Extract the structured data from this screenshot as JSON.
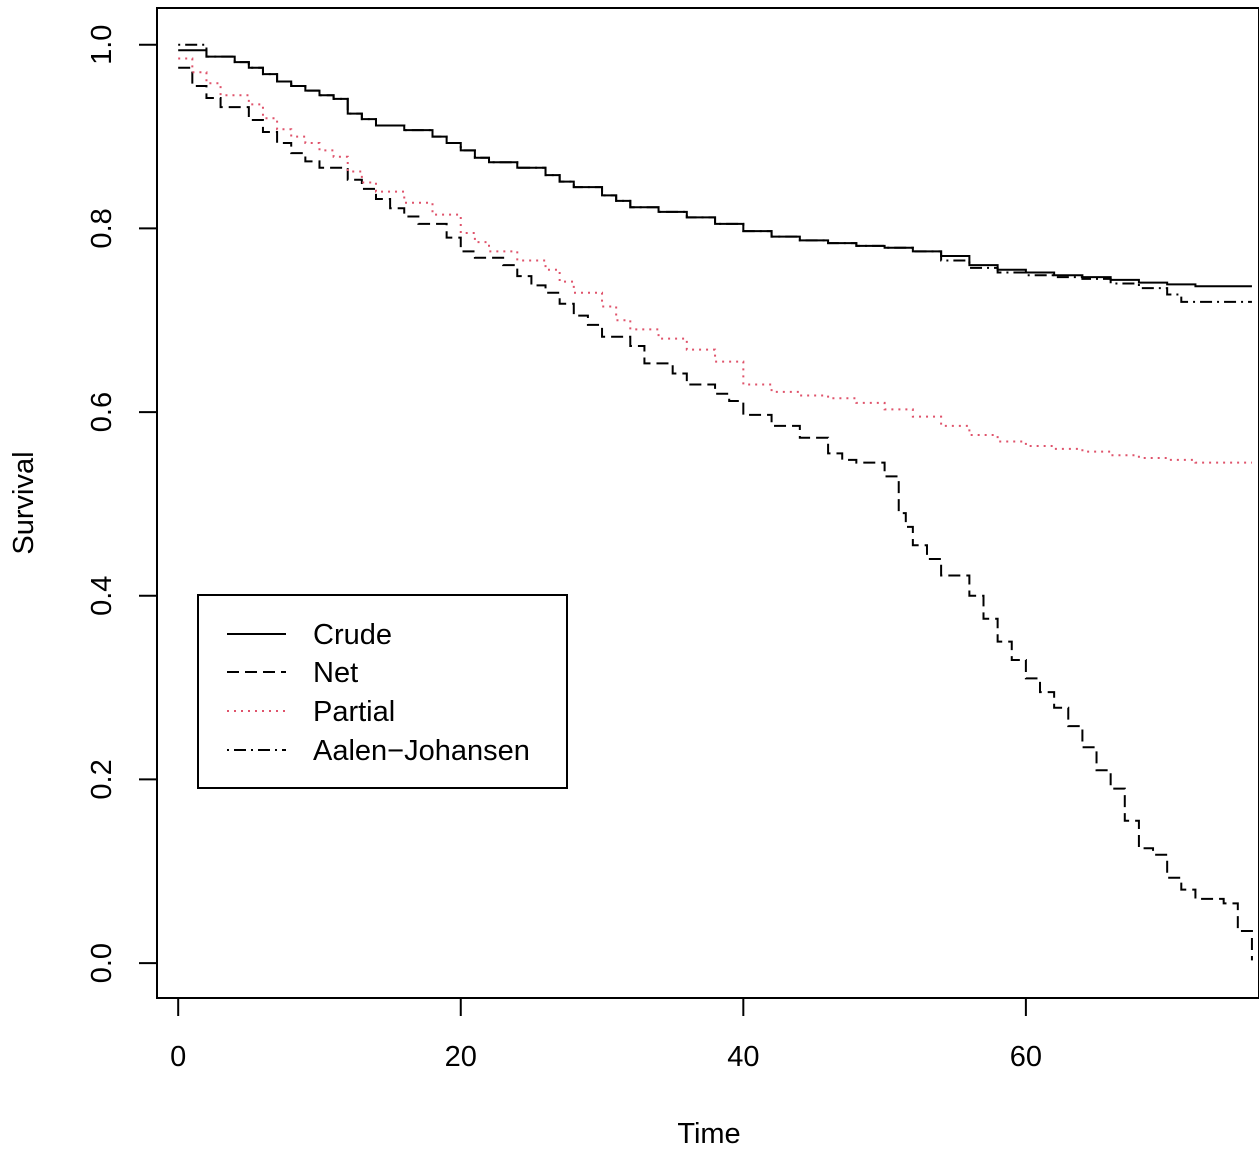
{
  "chart_data": {
    "type": "line",
    "xlabel": "Time",
    "ylabel": "Survival",
    "xlim": [
      -1.5,
      76.5
    ],
    "ylim": [
      -0.038,
      1.04
    ],
    "xticks": [
      0,
      20,
      40,
      60
    ],
    "yticks": [
      0.0,
      0.2,
      0.4,
      0.6,
      0.8,
      1.0
    ],
    "ytick_labels": [
      "0.0",
      "0.2",
      "0.4",
      "0.6",
      "0.8",
      "1.0"
    ],
    "grid": false,
    "legend_position": "center-left",
    "series": [
      {
        "name": "Crude",
        "color": "#000000",
        "dash": "solid",
        "step": true,
        "x": [
          0,
          2,
          4,
          5,
          6,
          7,
          8,
          9,
          10,
          11,
          12,
          13,
          14,
          16,
          18,
          19,
          20,
          21,
          22,
          24,
          26,
          27,
          28,
          30,
          31,
          32,
          34,
          36,
          38,
          40,
          42,
          44,
          46,
          48,
          50,
          52,
          54,
          56,
          58,
          60,
          62,
          64,
          66,
          68,
          70,
          72,
          76
        ],
        "y": [
          0.994,
          0.987,
          0.981,
          0.975,
          0.968,
          0.96,
          0.955,
          0.95,
          0.945,
          0.941,
          0.925,
          0.919,
          0.912,
          0.907,
          0.9,
          0.893,
          0.885,
          0.877,
          0.872,
          0.866,
          0.858,
          0.851,
          0.845,
          0.836,
          0.83,
          0.823,
          0.818,
          0.812,
          0.805,
          0.797,
          0.791,
          0.787,
          0.784,
          0.781,
          0.779,
          0.775,
          0.77,
          0.76,
          0.755,
          0.752,
          0.749,
          0.747,
          0.744,
          0.741,
          0.739,
          0.737,
          0.737
        ]
      },
      {
        "name": "Net",
        "color": "#000000",
        "dash": "dashed",
        "step": true,
        "x": [
          0,
          1,
          2,
          3,
          5,
          6,
          7,
          8,
          9,
          10,
          12,
          13,
          14,
          15,
          16,
          17,
          19,
          20,
          21,
          23,
          24,
          25,
          26,
          27,
          28,
          29,
          30,
          32,
          33,
          35,
          36,
          38,
          39,
          40,
          42,
          44,
          46,
          47,
          48,
          50,
          51,
          51.5,
          52,
          53,
          54,
          56,
          57,
          58,
          59,
          60,
          61,
          62,
          63,
          64,
          65,
          66,
          67,
          68,
          69,
          70,
          71,
          72,
          74,
          75,
          76
        ],
        "y": [
          0.975,
          0.955,
          0.942,
          0.932,
          0.918,
          0.905,
          0.893,
          0.882,
          0.873,
          0.866,
          0.853,
          0.843,
          0.832,
          0.822,
          0.813,
          0.805,
          0.79,
          0.775,
          0.768,
          0.76,
          0.748,
          0.738,
          0.73,
          0.718,
          0.705,
          0.695,
          0.682,
          0.672,
          0.653,
          0.642,
          0.63,
          0.62,
          0.612,
          0.597,
          0.585,
          0.572,
          0.555,
          0.548,
          0.545,
          0.53,
          0.49,
          0.475,
          0.455,
          0.44,
          0.422,
          0.4,
          0.375,
          0.35,
          0.33,
          0.31,
          0.295,
          0.278,
          0.258,
          0.235,
          0.21,
          0.19,
          0.155,
          0.125,
          0.118,
          0.093,
          0.08,
          0.07,
          0.065,
          0.035,
          0.003
        ]
      },
      {
        "name": "Partial",
        "color": "#df536b",
        "dash": "dotted",
        "step": true,
        "x": [
          0,
          1,
          2,
          3,
          5,
          6,
          7,
          8,
          9,
          10,
          11,
          12,
          13,
          14,
          16,
          18,
          20,
          21,
          22,
          24,
          26,
          27,
          28,
          30,
          31,
          32,
          34,
          36,
          38,
          40,
          42,
          44,
          46,
          48,
          50,
          52,
          54,
          56,
          58,
          60,
          62,
          64,
          66,
          68,
          70,
          72,
          76
        ],
        "y": [
          0.985,
          0.97,
          0.958,
          0.945,
          0.935,
          0.92,
          0.908,
          0.9,
          0.893,
          0.885,
          0.878,
          0.862,
          0.85,
          0.84,
          0.828,
          0.815,
          0.795,
          0.785,
          0.775,
          0.765,
          0.755,
          0.742,
          0.73,
          0.715,
          0.7,
          0.69,
          0.68,
          0.668,
          0.655,
          0.63,
          0.622,
          0.618,
          0.615,
          0.61,
          0.603,
          0.595,
          0.585,
          0.575,
          0.568,
          0.563,
          0.56,
          0.557,
          0.553,
          0.55,
          0.548,
          0.545,
          0.545
        ]
      },
      {
        "name": "Aalen−Johansen",
        "color": "#000000",
        "dash": "dotdash",
        "step": true,
        "x": [
          0,
          2,
          4,
          5,
          6,
          7,
          8,
          9,
          10,
          11,
          12,
          13,
          14,
          16,
          18,
          19,
          20,
          21,
          22,
          24,
          26,
          27,
          28,
          30,
          31,
          32,
          34,
          36,
          38,
          40,
          42,
          44,
          46,
          48,
          50,
          52,
          54,
          56,
          58,
          60,
          62,
          64,
          66,
          68,
          70,
          71,
          72,
          76
        ],
        "y": [
          1.0,
          0.987,
          0.981,
          0.975,
          0.968,
          0.96,
          0.955,
          0.95,
          0.945,
          0.941,
          0.925,
          0.919,
          0.912,
          0.907,
          0.9,
          0.893,
          0.885,
          0.877,
          0.872,
          0.866,
          0.858,
          0.851,
          0.845,
          0.836,
          0.83,
          0.823,
          0.818,
          0.812,
          0.805,
          0.797,
          0.791,
          0.787,
          0.784,
          0.781,
          0.779,
          0.775,
          0.765,
          0.757,
          0.752,
          0.749,
          0.747,
          0.745,
          0.74,
          0.735,
          0.728,
          0.72,
          0.72,
          0.72
        ]
      }
    ]
  }
}
